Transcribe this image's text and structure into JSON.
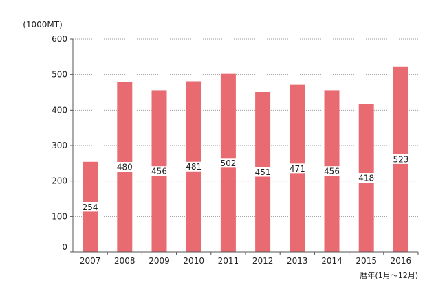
{
  "chart_data": {
    "type": "bar",
    "categories": [
      "2007",
      "2008",
      "2009",
      "2010",
      "2011",
      "2012",
      "2013",
      "2014",
      "2015",
      "2016"
    ],
    "values": [
      254,
      480,
      456,
      481,
      502,
      451,
      471,
      456,
      418,
      523
    ],
    "ylabel": "(1000MT)",
    "xlabel": "暦年(1月～12月)",
    "ylim": [
      0,
      600
    ],
    "yticks": [
      0,
      100,
      200,
      300,
      400,
      500,
      600
    ],
    "grid": true,
    "bar_color": "#e96b72",
    "legend": "none"
  }
}
